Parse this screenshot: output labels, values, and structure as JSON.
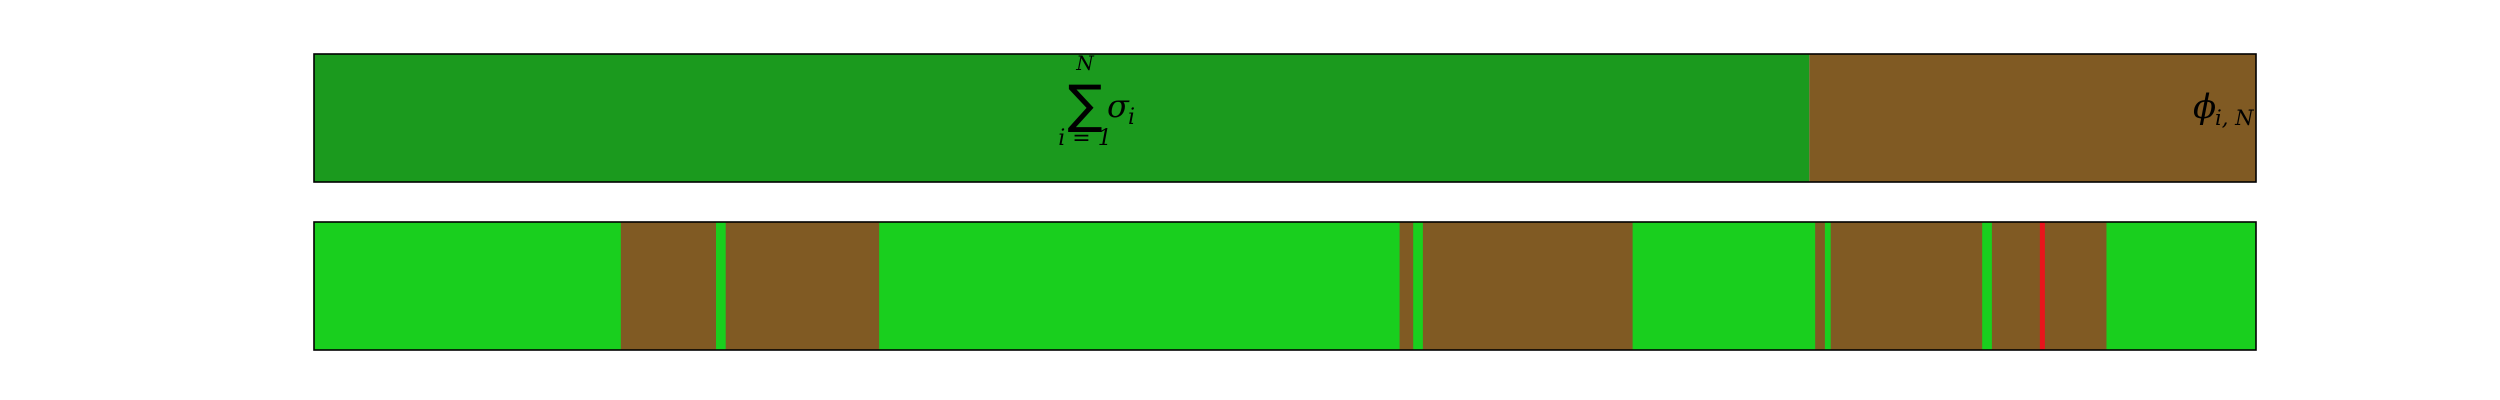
{
  "chart_data": [
    {
      "type": "bar",
      "orientation": "horizontal-stacked",
      "title": "",
      "xlabel": "",
      "ylabel": "",
      "xlim": [
        0,
        1
      ],
      "grid": false,
      "segments": [
        {
          "name": "sum-sigma",
          "start": 0.0,
          "end": 0.77,
          "color": "#1b9a1e"
        },
        {
          "name": "phi",
          "start": 0.77,
          "end": 1.0,
          "color": "#805a23"
        }
      ],
      "annotations": {
        "sum_symbol": "∑",
        "sum_upper": "N",
        "sum_lower": "i = 1",
        "sum_term": "σ",
        "sum_term_sub": "i",
        "phi_symbol": "ϕ",
        "phi_sub": "i, N"
      }
    },
    {
      "type": "bar",
      "orientation": "horizontal-intervals",
      "title": "",
      "xlabel": "",
      "ylabel": "",
      "xlim": [
        0,
        1
      ],
      "grid": false,
      "background_color": "#19cf1e",
      "interval_color": "#805a23",
      "intervals": [
        [
          0.158,
          0.207
        ],
        [
          0.212,
          0.291
        ],
        [
          0.559,
          0.566
        ],
        [
          0.571,
          0.679
        ],
        [
          0.773,
          0.778
        ],
        [
          0.781,
          0.859
        ],
        [
          0.864,
          0.923
        ]
      ],
      "marker": {
        "x": 0.89,
        "color": "#e8141c"
      }
    }
  ]
}
